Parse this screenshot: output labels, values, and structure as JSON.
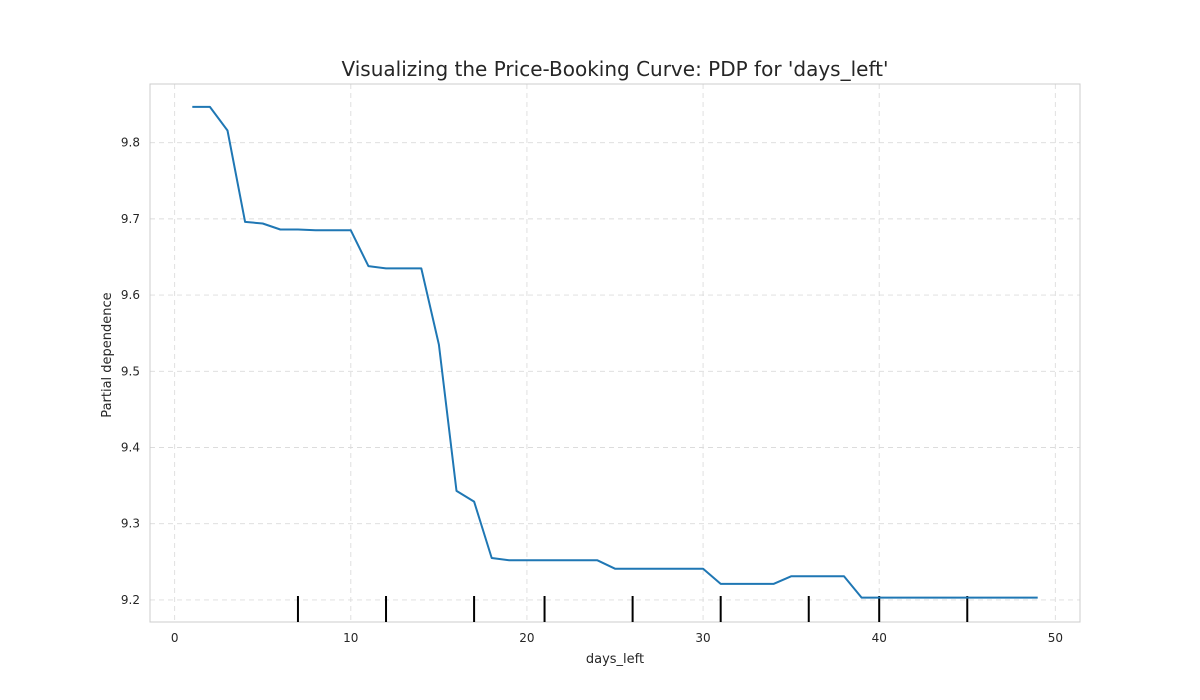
{
  "chart_data": {
    "type": "line",
    "title": "Visualizing the Price-Booking Curve: PDP for 'days_left'",
    "xlabel": "days_left",
    "ylabel": "Partial dependence",
    "xlim": [
      -1.4,
      51.4
    ],
    "ylim": [
      9.171,
      9.877
    ],
    "x_ticks": [
      0,
      10,
      20,
      30,
      40,
      50
    ],
    "y_ticks": [
      9.2,
      9.3,
      9.4,
      9.5,
      9.6,
      9.7,
      9.8
    ],
    "grid": true,
    "series": [
      {
        "x": [
          1,
          2,
          3,
          4,
          5,
          6,
          7,
          8,
          9,
          10,
          11,
          12,
          13,
          14,
          15,
          16,
          17,
          18,
          19,
          20,
          21,
          22,
          23,
          24,
          25,
          26,
          27,
          28,
          29,
          30,
          31,
          32,
          33,
          34,
          35,
          36,
          37,
          38,
          39,
          40,
          41,
          42,
          43,
          44,
          45,
          46,
          47,
          48,
          49
        ],
        "values": [
          9.847,
          9.847,
          9.816,
          9.696,
          9.694,
          9.686,
          9.686,
          9.685,
          9.685,
          9.685,
          9.638,
          9.635,
          9.635,
          9.635,
          9.535,
          9.343,
          9.329,
          9.255,
          9.252,
          9.252,
          9.252,
          9.252,
          9.252,
          9.252,
          9.241,
          9.241,
          9.241,
          9.241,
          9.241,
          9.241,
          9.221,
          9.221,
          9.221,
          9.221,
          9.231,
          9.231,
          9.231,
          9.231,
          9.203,
          9.203,
          9.203,
          9.203,
          9.203,
          9.203,
          9.203,
          9.203,
          9.203,
          9.203,
          9.203
        ]
      }
    ],
    "deciles": [
      7,
      12,
      17,
      21,
      26,
      31,
      36,
      40,
      45
    ]
  }
}
